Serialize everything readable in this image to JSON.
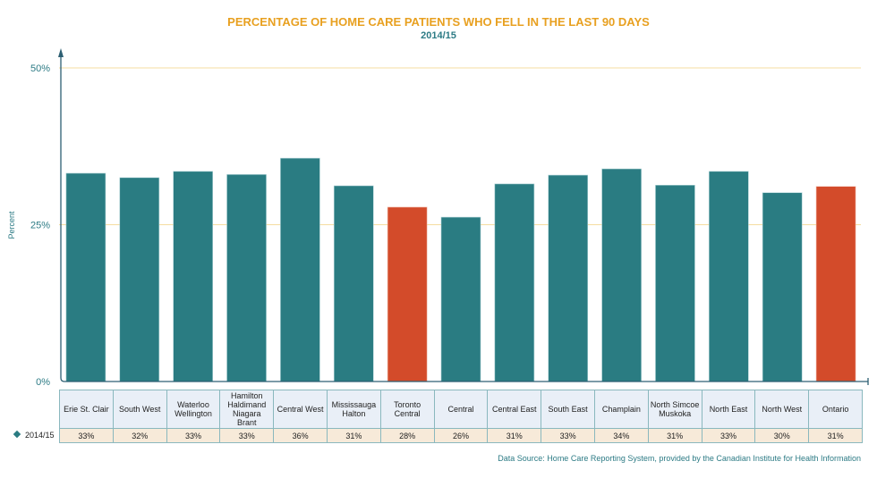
{
  "chart_data": {
    "type": "bar",
    "title": "PERCENTAGE OF HOME CARE PATIENTS WHO FELL IN THE LAST 90 DAYS",
    "subtitle": "2014/15",
    "xlabel": "",
    "ylabel": "Percent",
    "ylim": [
      0,
      50
    ],
    "yticks": [
      "0%",
      "25%",
      "50%"
    ],
    "ytick_values": [
      0,
      25,
      50
    ],
    "grid": true,
    "categories": [
      "Erie St. Clair",
      "South West",
      "Waterloo Wellington",
      "Hamilton Haldimand Niagara Brant",
      "Central West",
      "Mississauga Halton",
      "Toronto Central",
      "Central",
      "Central East",
      "South East",
      "Champlain",
      "North Simcoe Muskoka",
      "North East",
      "North West",
      "Ontario"
    ],
    "category_lines": [
      [
        "Erie St. Clair"
      ],
      [
        "South West"
      ],
      [
        "Waterloo",
        "Wellington"
      ],
      [
        "Hamilton",
        "Haldimand",
        "Niagara",
        "Brant"
      ],
      [
        "Central West"
      ],
      [
        "Mississauga",
        "Halton"
      ],
      [
        "Toronto",
        "Central"
      ],
      [
        "Central"
      ],
      [
        "Central East"
      ],
      [
        "South East"
      ],
      [
        "Champlain"
      ],
      [
        "North Simcoe",
        "Muskoka"
      ],
      [
        "North East"
      ],
      [
        "North West"
      ],
      [
        "Ontario"
      ]
    ],
    "series": [
      {
        "name": "2014/15",
        "values": [
          33.2,
          32.5,
          33.5,
          33.0,
          35.6,
          31.2,
          27.8,
          26.2,
          31.5,
          32.9,
          33.9,
          31.3,
          33.5,
          30.1,
          31.1
        ],
        "labels": [
          "33%",
          "32%",
          "33%",
          "33%",
          "36%",
          "31%",
          "28%",
          "26%",
          "31%",
          "33%",
          "34%",
          "31%",
          "33%",
          "30%",
          "31%"
        ]
      }
    ],
    "highlighted": [
      "Toronto Central",
      "Ontario"
    ],
    "colors": {
      "default": "#2a7c82",
      "highlight": "#d34b2a",
      "grid": "#f5dca0",
      "axis": "#2d5f73"
    }
  },
  "source": "Data Source: Home Care Reporting System, provided by the Canadian Institute for Health Information"
}
